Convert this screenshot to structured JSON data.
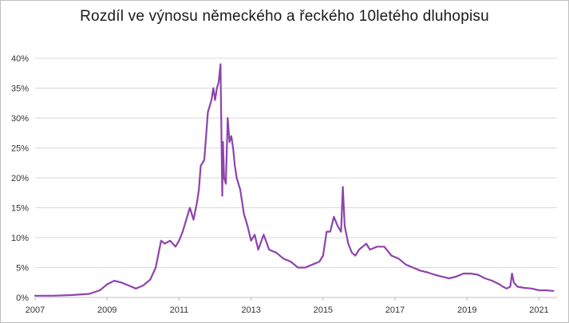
{
  "chart_data": {
    "type": "line",
    "title": "Rozdíl ve výnosu německého a řeckého 10letého dluhopisu",
    "xlabel": "",
    "ylabel": "",
    "x_ticks": [
      "2007",
      "2009",
      "2011",
      "2013",
      "2015",
      "2017",
      "2019",
      "2021"
    ],
    "y_ticks": [
      "0%",
      "5%",
      "10%",
      "15%",
      "20%",
      "25%",
      "30%",
      "35%",
      "40%"
    ],
    "xlim": [
      2007.0,
      2021.5
    ],
    "ylim": [
      0,
      40
    ],
    "grid": "horizontal",
    "legend": "none",
    "colors": {
      "line": "#8e44ad",
      "grid": "#d9d9d9",
      "axis": "#bfbfbf"
    },
    "series": [
      {
        "x": [
          2007.0,
          2007.5,
          2008.0,
          2008.5,
          2008.8,
          2009.0,
          2009.2,
          2009.4,
          2009.6,
          2009.8,
          2010.0,
          2010.2,
          2010.35,
          2010.45,
          2010.5,
          2010.6,
          2010.75,
          2010.9,
          2011.0,
          2011.1,
          2011.2,
          2011.3,
          2011.4,
          2011.5,
          2011.55,
          2011.6,
          2011.7,
          2011.8,
          2011.9,
          2011.95,
          2012.0,
          2012.05,
          2012.1,
          2012.15,
          2012.2,
          2012.22,
          2012.25,
          2012.3,
          2012.35,
          2012.4,
          2012.45,
          2012.5,
          2012.55,
          2012.6,
          2012.7,
          2012.8,
          2012.9,
          2013.0,
          2013.1,
          2013.2,
          2013.35,
          2013.5,
          2013.7,
          2013.9,
          2014.1,
          2014.3,
          2014.5,
          2014.7,
          2014.9,
          2015.0,
          2015.1,
          2015.2,
          2015.3,
          2015.4,
          2015.5,
          2015.55,
          2015.6,
          2015.65,
          2015.7,
          2015.8,
          2015.9,
          2016.0,
          2016.1,
          2016.2,
          2016.3,
          2016.5,
          2016.7,
          2016.9,
          2017.1,
          2017.3,
          2017.5,
          2017.7,
          2017.9,
          2018.1,
          2018.3,
          2018.5,
          2018.7,
          2018.9,
          2019.1,
          2019.3,
          2019.5,
          2019.7,
          2019.9,
          2020.0,
          2020.1,
          2020.2,
          2020.25,
          2020.3,
          2020.4,
          2020.6,
          2020.8,
          2021.0,
          2021.2,
          2021.4
        ],
        "y": [
          0.3,
          0.3,
          0.4,
          0.6,
          1.2,
          2.2,
          2.8,
          2.5,
          2.0,
          1.5,
          2.0,
          3.0,
          5.0,
          8.0,
          9.5,
          9.0,
          9.5,
          8.5,
          9.5,
          11.0,
          13.0,
          15.0,
          13.0,
          16.0,
          18.0,
          22.0,
          23.0,
          31.0,
          33.0,
          35.0,
          33.0,
          35.0,
          36.0,
          39.0,
          17.0,
          26.0,
          20.0,
          19.0,
          30.0,
          26.0,
          27.0,
          25.0,
          22.0,
          20.0,
          18.0,
          14.0,
          12.0,
          9.5,
          10.5,
          8.0,
          10.5,
          8.0,
          7.5,
          6.5,
          6.0,
          5.0,
          5.0,
          5.5,
          6.0,
          7.0,
          11.0,
          11.0,
          13.5,
          12.0,
          11.0,
          18.5,
          12.0,
          10.5,
          9.0,
          7.5,
          7.0,
          8.0,
          8.5,
          9.0,
          8.0,
          8.5,
          8.5,
          7.0,
          6.5,
          5.5,
          5.0,
          4.5,
          4.2,
          3.8,
          3.5,
          3.2,
          3.5,
          4.0,
          4.0,
          3.8,
          3.2,
          2.8,
          2.2,
          1.8,
          1.5,
          1.8,
          4.0,
          2.5,
          1.8,
          1.6,
          1.5,
          1.2,
          1.2,
          1.1
        ]
      }
    ]
  }
}
